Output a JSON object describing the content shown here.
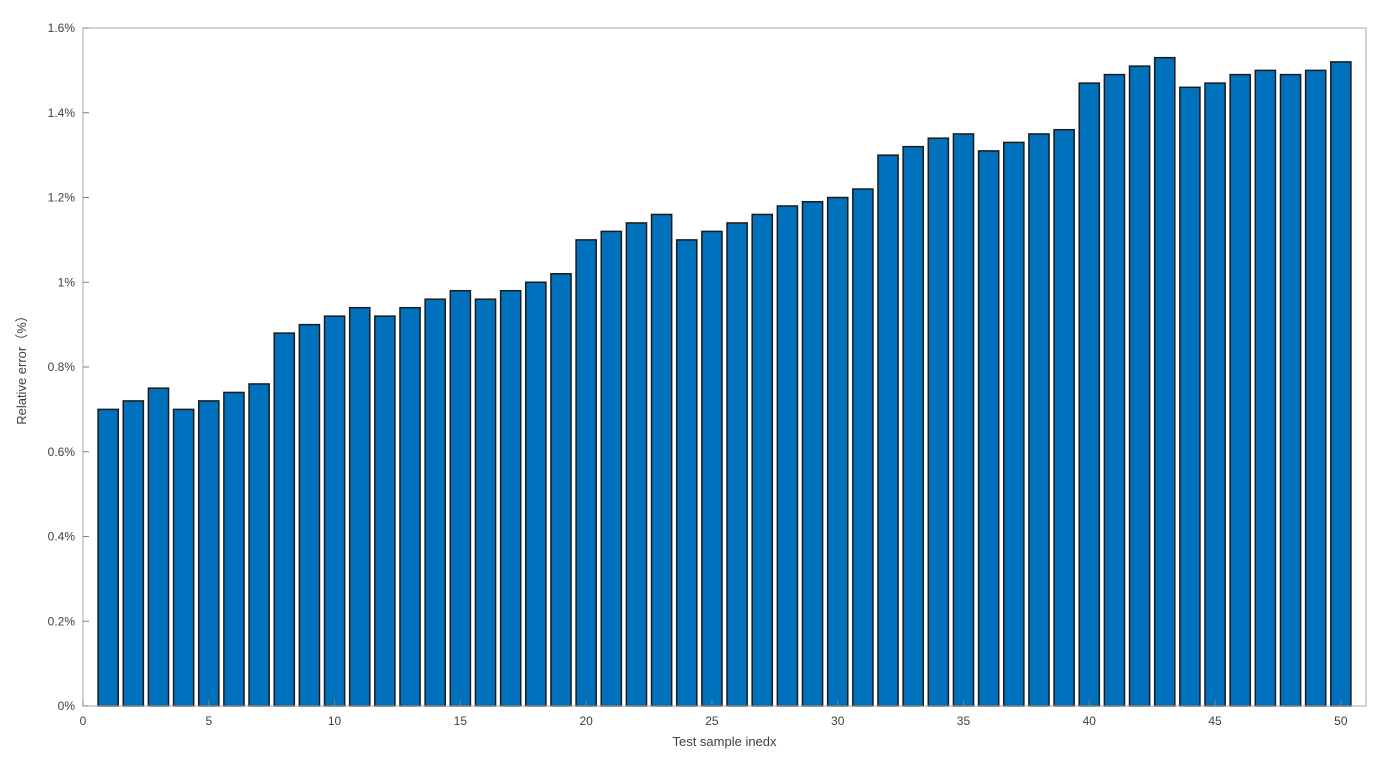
{
  "chart_data": {
    "type": "bar",
    "xlabel": "Test sample inedx",
    "ylabel": "Relative error（%）",
    "ylim": [
      0,
      1.6
    ],
    "xlim": [
      0,
      51
    ],
    "x_ticks": [
      0,
      5,
      10,
      15,
      20,
      25,
      30,
      35,
      40,
      45,
      50
    ],
    "x_tick_labels": [
      "0",
      "5",
      "10",
      "15",
      "20",
      "25",
      "30",
      "35",
      "40",
      "45",
      "50"
    ],
    "y_ticks": [
      0,
      0.2,
      0.4,
      0.6,
      0.8,
      1.0,
      1.2,
      1.4,
      1.6
    ],
    "y_tick_labels": [
      "0%",
      "0.2%",
      "0.4%",
      "0.6%",
      "0.8%",
      "1%",
      "1.2%",
      "1.4%",
      "1.6%"
    ],
    "unit": "%",
    "grid": false,
    "bar_color": "#0072bd",
    "categories": [
      1,
      2,
      3,
      4,
      5,
      6,
      7,
      8,
      9,
      10,
      11,
      12,
      13,
      14,
      15,
      16,
      17,
      18,
      19,
      20,
      21,
      22,
      23,
      24,
      25,
      26,
      27,
      28,
      29,
      30,
      31,
      32,
      33,
      34,
      35,
      36,
      37,
      38,
      39,
      40,
      41,
      42,
      43,
      44,
      45,
      46,
      47,
      48,
      49,
      50
    ],
    "values": [
      0.7,
      0.72,
      0.75,
      0.7,
      0.72,
      0.74,
      0.76,
      0.88,
      0.9,
      0.92,
      0.94,
      0.92,
      0.94,
      0.96,
      0.98,
      0.96,
      0.98,
      1.0,
      1.02,
      1.1,
      1.12,
      1.14,
      1.16,
      1.1,
      1.12,
      1.14,
      1.16,
      1.18,
      1.19,
      1.2,
      1.22,
      1.3,
      1.32,
      1.34,
      1.35,
      1.31,
      1.33,
      1.35,
      1.36,
      1.47,
      1.49,
      1.51,
      1.53,
      1.46,
      1.47,
      1.49,
      1.5,
      1.49,
      1.5,
      1.52
    ]
  }
}
